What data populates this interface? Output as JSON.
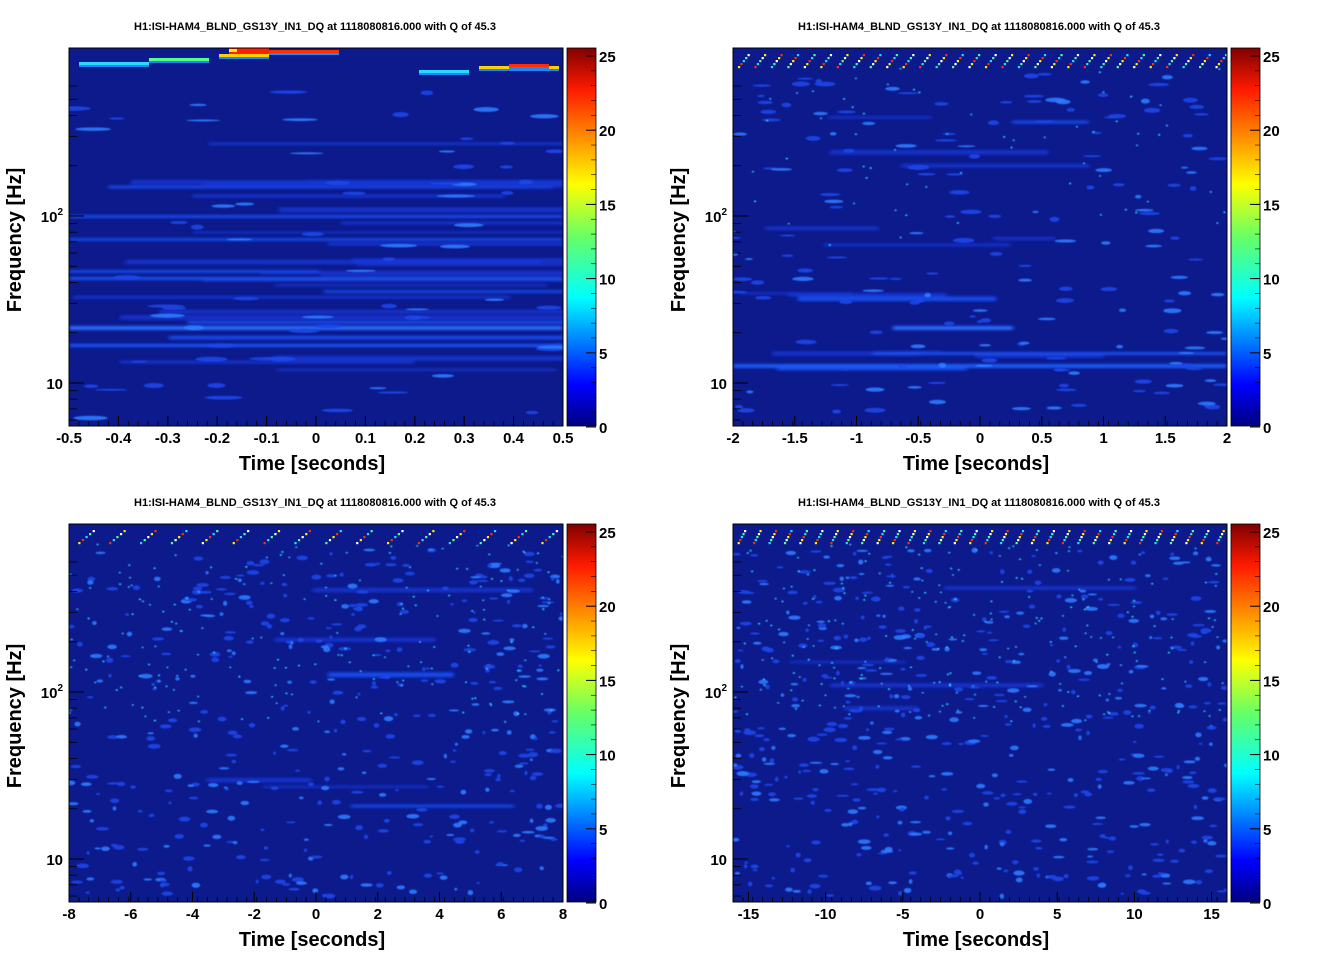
{
  "chart_data": [
    {
      "type": "heatmap",
      "title": "H1:ISI-HAM4_BLND_GS13Y_IN1_DQ at 1118080816.000 with Q of 45.3",
      "xlabel": "Time [seconds]",
      "ylabel": "Frequency [Hz]",
      "xlim": [
        -0.5,
        0.5
      ],
      "xticks": [
        "-0.5",
        "-0.4",
        "-0.3",
        "-0.2",
        "-0.1",
        "0",
        "0.1",
        "0.2",
        "0.3",
        "0.4",
        "0.5"
      ],
      "y_scale": "log",
      "yticks": [
        {
          "base": "10",
          "exp": ""
        },
        {
          "base": "10",
          "exp": "2"
        }
      ],
      "colorbar": {
        "range": [
          0,
          25
        ],
        "ticks": [
          "0",
          "5",
          "10",
          "15",
          "20",
          "25"
        ]
      }
    },
    {
      "type": "heatmap",
      "title": "H1:ISI-HAM4_BLND_GS13Y_IN1_DQ at 1118080816.000 with Q of 45.3",
      "xlabel": "Time [seconds]",
      "ylabel": "Frequency [Hz]",
      "xlim": [
        -2,
        2
      ],
      "xticks": [
        "-2",
        "-1.5",
        "-1",
        "-0.5",
        "0",
        "0.5",
        "1",
        "1.5",
        "2"
      ],
      "y_scale": "log",
      "yticks": [
        {
          "base": "10",
          "exp": ""
        },
        {
          "base": "10",
          "exp": "2"
        }
      ],
      "colorbar": {
        "range": [
          0,
          25
        ],
        "ticks": [
          "0",
          "5",
          "10",
          "15",
          "20",
          "25"
        ]
      }
    },
    {
      "type": "heatmap",
      "title": "H1:ISI-HAM4_BLND_GS13Y_IN1_DQ at 1118080816.000 with Q of 45.3",
      "xlabel": "Time [seconds]",
      "ylabel": "Frequency [Hz]",
      "xlim": [
        -8,
        8
      ],
      "xticks": [
        "-8",
        "-6",
        "-4",
        "-2",
        "0",
        "2",
        "4",
        "6",
        "8"
      ],
      "y_scale": "log",
      "yticks": [
        {
          "base": "10",
          "exp": ""
        },
        {
          "base": "10",
          "exp": "2"
        }
      ],
      "colorbar": {
        "range": [
          0,
          25
        ],
        "ticks": [
          "0",
          "5",
          "10",
          "15",
          "20",
          "25"
        ]
      }
    },
    {
      "type": "heatmap",
      "title": "H1:ISI-HAM4_BLND_GS13Y_IN1_DQ at 1118080816.000 with Q of 45.3",
      "xlabel": "Time [seconds]",
      "ylabel": "Frequency [Hz]",
      "xlim": [
        -16,
        16
      ],
      "xticks": [
        "-15",
        "-10",
        "-5",
        "0",
        "5",
        "10",
        "15"
      ],
      "y_scale": "log",
      "yticks": [
        {
          "base": "10",
          "exp": ""
        },
        {
          "base": "10",
          "exp": "2"
        }
      ],
      "colorbar": {
        "range": [
          0,
          25
        ],
        "ticks": [
          "0",
          "5",
          "10",
          "15",
          "20",
          "25"
        ]
      }
    }
  ]
}
